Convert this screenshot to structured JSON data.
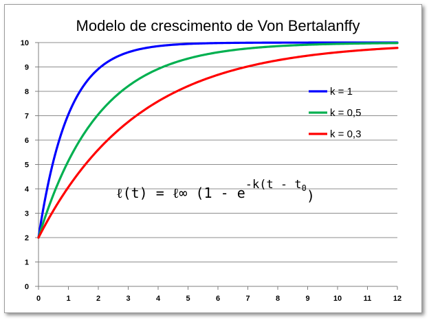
{
  "chart_data": {
    "type": "line",
    "title": "Modelo de crescimento de Von Bertalanffy",
    "xlabel": "",
    "ylabel": "",
    "xlim": [
      0,
      12
    ],
    "ylim": [
      0,
      10
    ],
    "x_ticks": [
      0,
      1,
      2,
      3,
      4,
      5,
      6,
      7,
      8,
      9,
      10,
      11,
      12
    ],
    "y_ticks": [
      0,
      1,
      2,
      3,
      4,
      5,
      6,
      7,
      8,
      9,
      10
    ],
    "grid": "horizontal",
    "legend_position": "right",
    "model": {
      "l_inf": 10,
      "l0": 2
    },
    "series": [
      {
        "name": "k = 1",
        "k": 1,
        "color": "#0000ff",
        "x": [
          0,
          1,
          2,
          3,
          4,
          5,
          6,
          7,
          8,
          9,
          10,
          11,
          12
        ],
        "y": [
          2.0,
          7.06,
          8.92,
          9.6,
          9.85,
          9.95,
          9.98,
          9.99,
          10.0,
          10.0,
          10.0,
          10.0,
          10.0
        ]
      },
      {
        "name": "k = 0,5",
        "k": 0.5,
        "color": "#00b050",
        "x": [
          0,
          1,
          2,
          3,
          4,
          5,
          6,
          7,
          8,
          9,
          10,
          11,
          12
        ],
        "y": [
          2.0,
          5.15,
          7.06,
          8.21,
          8.92,
          9.34,
          9.6,
          9.76,
          9.85,
          9.91,
          9.95,
          9.97,
          9.98
        ]
      },
      {
        "name": "k = 0,3",
        "k": 0.3,
        "color": "#ff0000",
        "x": [
          0,
          1,
          2,
          3,
          4,
          5,
          6,
          7,
          8,
          9,
          10,
          11,
          12
        ],
        "y": [
          2.0,
          4.07,
          5.61,
          6.75,
          7.59,
          8.22,
          8.68,
          9.02,
          9.27,
          9.46,
          9.6,
          9.71,
          9.78
        ]
      }
    ],
    "annotation": {
      "lhs": "ℓ(t) = ℓ∞ (1 - e",
      "exponent": "-k(t - t",
      "subscript": "0",
      "tail": ")"
    }
  }
}
